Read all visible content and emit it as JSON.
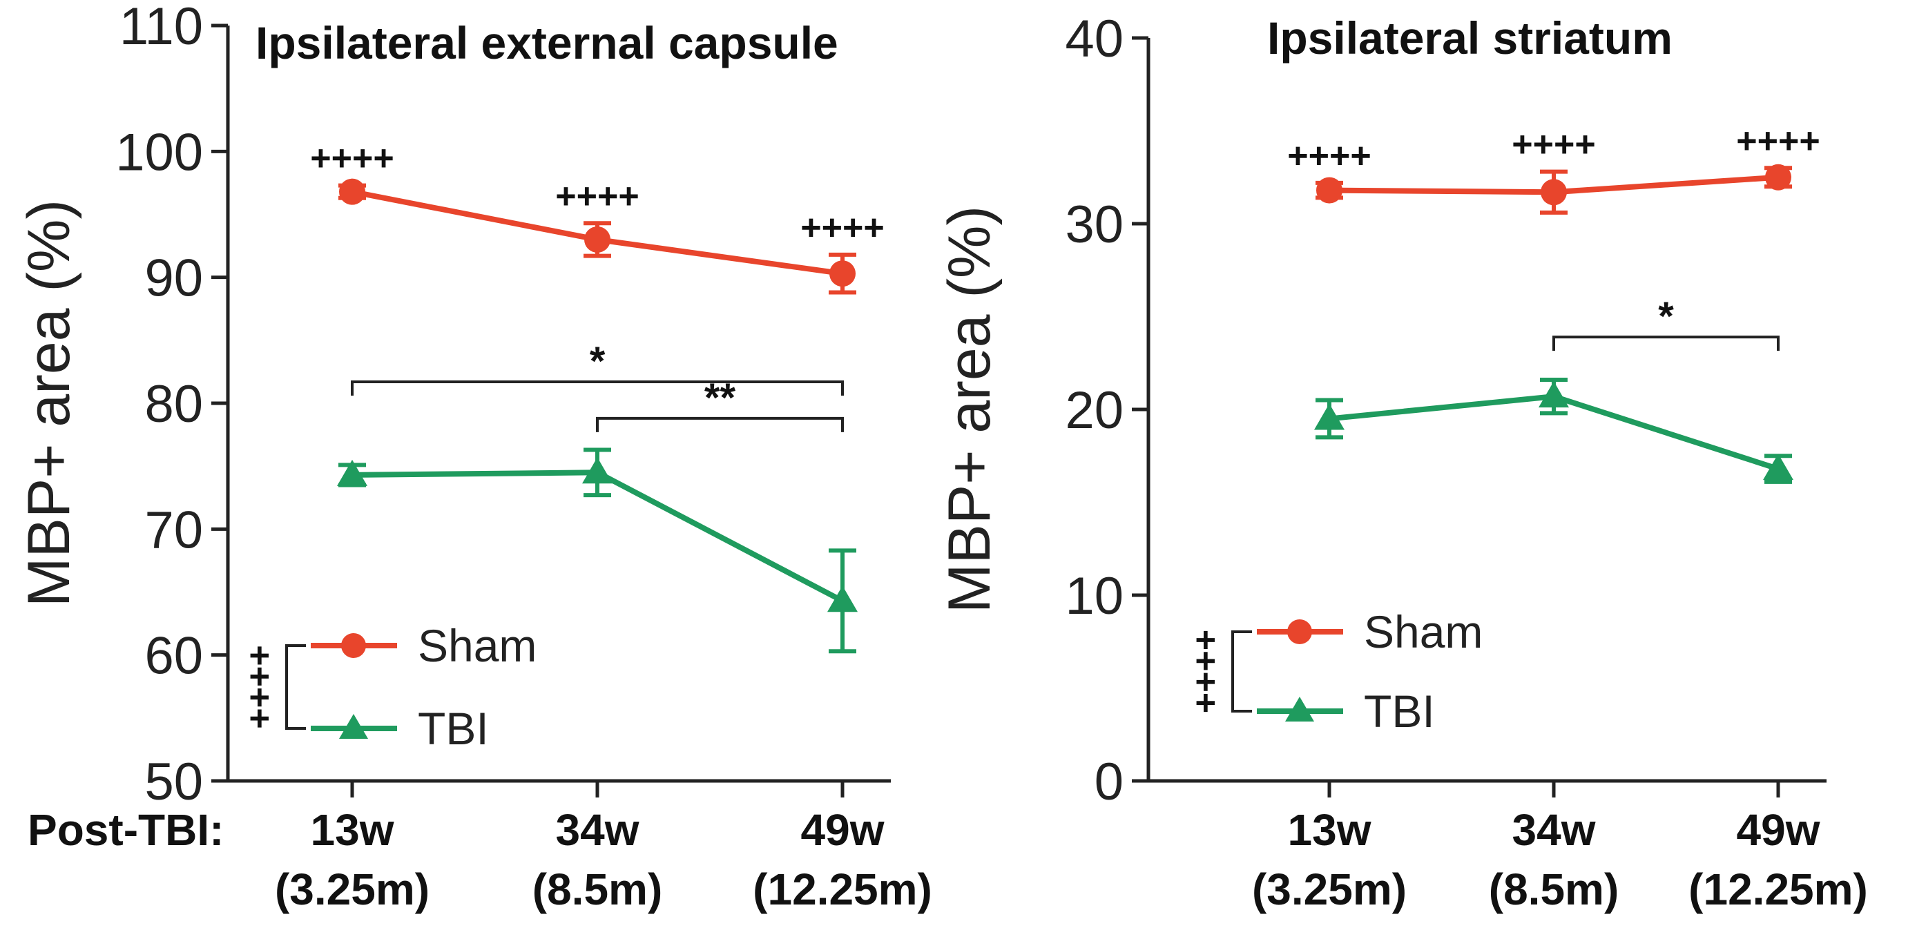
{
  "common": {
    "post_label": "Post-TBI:",
    "colors": {
      "sham": "#e8452c",
      "tbi": "#1f9b5e"
    }
  },
  "chart_data": [
    {
      "type": "line",
      "title": "Ipsilateral external capsule",
      "ylabel": "MBP+ area (%)",
      "ylim": [
        50,
        110
      ],
      "yticks": [
        50,
        60,
        70,
        80,
        90,
        100,
        110
      ],
      "categories": [
        {
          "line1": "13w",
          "line2": "(3.25m)"
        },
        {
          "line1": "34w",
          "line2": "(8.5m)"
        },
        {
          "line1": "49w",
          "line2": "(12.25m)"
        }
      ],
      "series": [
        {
          "name": "Sham",
          "marker": "circle",
          "values": [
            96.8,
            93.0,
            90.3
          ],
          "err": [
            0.5,
            1.3,
            1.5
          ],
          "marks": [
            "++++",
            "++++",
            "++++"
          ]
        },
        {
          "name": "TBI",
          "marker": "triangle",
          "values": [
            74.3,
            74.5,
            64.3
          ],
          "err": [
            0.8,
            1.8,
            4.0
          ]
        }
      ],
      "comparisons": [
        {
          "from": 0,
          "to": 2,
          "y": 81.7,
          "label": "*"
        },
        {
          "from": 1,
          "to": 2,
          "y": 78.8,
          "label": "**"
        }
      ],
      "group_sig": "++++"
    },
    {
      "type": "line",
      "title": "Ipsilateral striatum",
      "ylabel": "MBP+ area (%)",
      "ylim": [
        0,
        40
      ],
      "yticks": [
        0,
        10,
        20,
        30,
        40
      ],
      "categories": [
        {
          "line1": "13w",
          "line2": "(3.25m)"
        },
        {
          "line1": "34w",
          "line2": "(8.5m)"
        },
        {
          "line1": "49w",
          "line2": "(12.25m)"
        }
      ],
      "series": [
        {
          "name": "Sham",
          "marker": "circle",
          "values": [
            31.8,
            31.7,
            32.5
          ],
          "err": [
            0.4,
            1.1,
            0.5
          ],
          "marks": [
            "++++",
            "++++",
            "++++"
          ]
        },
        {
          "name": "TBI",
          "marker": "triangle",
          "values": [
            19.5,
            20.7,
            16.8
          ],
          "err": [
            1.0,
            0.9,
            0.7
          ]
        }
      ],
      "comparisons": [
        {
          "from": 1,
          "to": 2,
          "y": 23.9,
          "label": "*"
        }
      ],
      "group_sig": "++++"
    }
  ]
}
